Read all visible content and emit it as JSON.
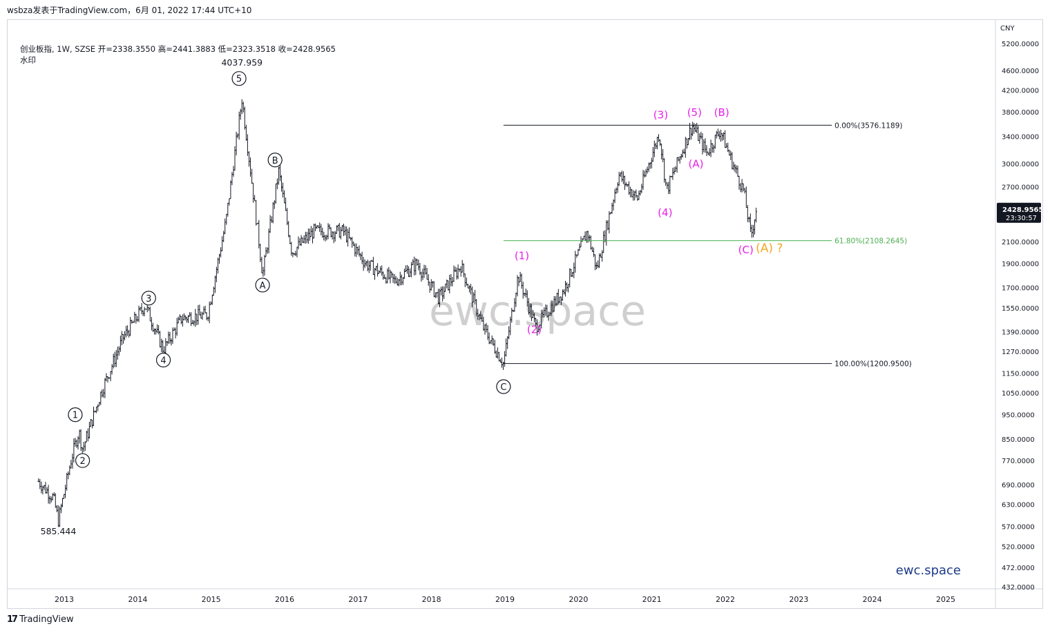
{
  "topbar": {
    "publisher_line": "wsbza发表于TradingView.com，6月 01, 2022 17:44 UTC+10"
  },
  "legend": {
    "symbol_line": "创业板指, 1W, SZSE  开=2338.3550  高=2441.3883  低=2323.3518  收=2428.9565",
    "watermark_label": "水印"
  },
  "watermark": {
    "center_text": "ewc.space",
    "corner_text": "ewc.space"
  },
  "price_scale": {
    "currency": "CNY",
    "ticks": [
      "5200.0000",
      "4600.0000",
      "4200.0000",
      "3800.0000",
      "3400.0000",
      "3000.0000",
      "2700.0000",
      "2428.9565",
      "2100.0000",
      "1900.0000",
      "1700.0000",
      "1550.0000",
      "1390.0000",
      "1270.0000",
      "1150.0000",
      "1050.0000",
      "950.0000",
      "850.0000",
      "770.0000",
      "690.0000",
      "630.0000",
      "570.0000",
      "520.0000",
      "472.0000",
      "432.0000"
    ],
    "last_price_label": "2428.9565",
    "countdown_label": "23:30:57"
  },
  "time_scale": {
    "ticks": [
      "2013",
      "2014",
      "2015",
      "2016",
      "2017",
      "2018",
      "2019",
      "2020",
      "2021",
      "2022",
      "2023",
      "2024",
      "2025"
    ]
  },
  "branding": {
    "logo_text": "17",
    "name": "TradingView"
  },
  "colors": {
    "candle": "#131722",
    "magenta_labels": "#e91ee9",
    "orange_labels": "#f5a623",
    "fib_green": "#4caf50",
    "brand_blue": "#1c3a8a",
    "watermark_grey": "#bfbfbf"
  },
  "chart_data": {
    "type": "ohlc",
    "symbol": "创业板指",
    "interval": "1W",
    "exchange": "SZSE",
    "scale": "log",
    "y_range": [
      432,
      5200
    ],
    "x_range": [
      "2012-06",
      "2025-09"
    ],
    "last_bar": {
      "open": 2338.355,
      "high": 2441.3883,
      "low": 2323.3518,
      "close": 2428.9565
    },
    "price_path": [
      {
        "t": 2012.65,
        "v": 700
      },
      {
        "t": 2012.85,
        "v": 650
      },
      {
        "t": 2012.92,
        "v": 585.444
      },
      {
        "t": 2013.1,
        "v": 780
      },
      {
        "t": 2013.2,
        "v": 880
      },
      {
        "t": 2013.25,
        "v": 810
      },
      {
        "t": 2013.5,
        "v": 1050
      },
      {
        "t": 2013.8,
        "v": 1350
      },
      {
        "t": 2014.1,
        "v": 1570
      },
      {
        "t": 2014.35,
        "v": 1280
      },
      {
        "t": 2014.6,
        "v": 1480
      },
      {
        "t": 2014.95,
        "v": 1500
      },
      {
        "t": 2015.2,
        "v": 2300
      },
      {
        "t": 2015.42,
        "v": 4037.959
      },
      {
        "t": 2015.65,
        "v": 2100
      },
      {
        "t": 2015.7,
        "v": 1800
      },
      {
        "t": 2015.92,
        "v": 2900
      },
      {
        "t": 2016.1,
        "v": 2000
      },
      {
        "t": 2016.4,
        "v": 2200
      },
      {
        "t": 2016.8,
        "v": 2200
      },
      {
        "t": 2017.1,
        "v": 1900
      },
      {
        "t": 2017.5,
        "v": 1750
      },
      {
        "t": 2017.8,
        "v": 1900
      },
      {
        "t": 2018.1,
        "v": 1620
      },
      {
        "t": 2018.4,
        "v": 1880
      },
      {
        "t": 2018.7,
        "v": 1420
      },
      {
        "t": 2018.98,
        "v": 1200.95
      },
      {
        "t": 2019.18,
        "v": 1800
      },
      {
        "t": 2019.42,
        "v": 1420
      },
      {
        "t": 2019.8,
        "v": 1680
      },
      {
        "t": 2020.12,
        "v": 2200
      },
      {
        "t": 2020.25,
        "v": 1850
      },
      {
        "t": 2020.55,
        "v": 2850
      },
      {
        "t": 2020.8,
        "v": 2550
      },
      {
        "t": 2021.1,
        "v": 3450
      },
      {
        "t": 2021.2,
        "v": 2650
      },
      {
        "t": 2021.55,
        "v": 3576.1189
      },
      {
        "t": 2021.75,
        "v": 3150
      },
      {
        "t": 2021.93,
        "v": 3500
      },
      {
        "t": 2022.1,
        "v": 3000
      },
      {
        "t": 2022.25,
        "v": 2650
      },
      {
        "t": 2022.35,
        "v": 2150
      },
      {
        "t": 2022.42,
        "v": 2428.9565
      }
    ],
    "price_labels": [
      {
        "text": "4037.959",
        "t": 2015.42,
        "v": 4037.959,
        "pos": "above"
      },
      {
        "text": "585.444",
        "t": 2012.92,
        "v": 585.444,
        "pos": "below"
      }
    ],
    "wave_labels_circled": [
      {
        "text": "1",
        "t": 2013.15,
        "v": 950
      },
      {
        "text": "2",
        "t": 2013.25,
        "v": 770
      },
      {
        "text": "3",
        "t": 2014.15,
        "v": 1620
      },
      {
        "text": "4",
        "t": 2014.35,
        "v": 1220
      },
      {
        "text": "5",
        "t": 2015.38,
        "v": 4430
      },
      {
        "text": "A",
        "t": 2015.7,
        "v": 1720
      },
      {
        "text": "B",
        "t": 2015.87,
        "v": 3050
      },
      {
        "text": "C",
        "t": 2018.98,
        "v": 1080
      }
    ],
    "wave_labels_magenta": [
      {
        "text": "(1)",
        "t": 2019.23,
        "v": 1935
      },
      {
        "text": "(2)",
        "t": 2019.4,
        "v": 1380
      },
      {
        "text": "(3)",
        "t": 2021.12,
        "v": 3690
      },
      {
        "text": "(4)",
        "t": 2021.18,
        "v": 2360
      },
      {
        "text": "(5)",
        "t": 2021.58,
        "v": 3730
      },
      {
        "text": "(A)",
        "t": 2021.6,
        "v": 2950
      },
      {
        "text": "(B)",
        "t": 2021.95,
        "v": 3730
      },
      {
        "text": "(C)",
        "t": 2022.28,
        "v": 1990
      }
    ],
    "wave_labels_orange": [
      {
        "text": "(A) ?",
        "t": 2022.6,
        "v": 2000
      }
    ],
    "fib_levels": [
      {
        "label": "0.00%(3576.1189)",
        "value": 3576.1189,
        "color": "#131722"
      },
      {
        "label": "61.80%(2108.2645)",
        "value": 2108.2645,
        "color": "#4caf50"
      },
      {
        "label": "100.00%(1200.9500)",
        "value": 1200.95,
        "color": "#131722"
      }
    ],
    "fib_span": [
      "2018.98",
      "2023.45"
    ]
  }
}
